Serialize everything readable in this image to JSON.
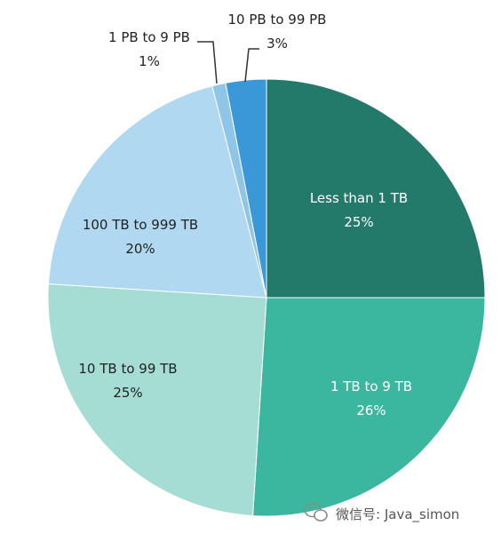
{
  "chart_data": {
    "type": "pie",
    "title": "",
    "slices": [
      {
        "label": "Less than 1 TB",
        "value": 25,
        "value_text": "25%",
        "color": "#247a6a",
        "label_color": "#ffffff"
      },
      {
        "label": "1 TB to 9 TB",
        "value": 26,
        "value_text": "26%",
        "color": "#3bb7a0",
        "label_color": "#ffffff"
      },
      {
        "label": "10 TB to 99 TB",
        "value": 25,
        "value_text": "25%",
        "color": "#a5dcd4",
        "label_color": "#222222"
      },
      {
        "label": "100 TB to 999 TB",
        "value": 20,
        "value_text": "20%",
        "color": "#b0d8f0",
        "label_color": "#222222"
      },
      {
        "label": "1 PB to 9 PB",
        "value": 1,
        "value_text": "1%",
        "color": "#8fc6e7",
        "label_color": "#222222"
      },
      {
        "label": "10 PB to 99 PB",
        "value": 3,
        "value_text": "3%",
        "color": "#3a97d8",
        "label_color": "#222222"
      }
    ],
    "legend": "none"
  },
  "watermark": {
    "text": "微信号: Java_simon",
    "icon": "wechat-icon"
  }
}
